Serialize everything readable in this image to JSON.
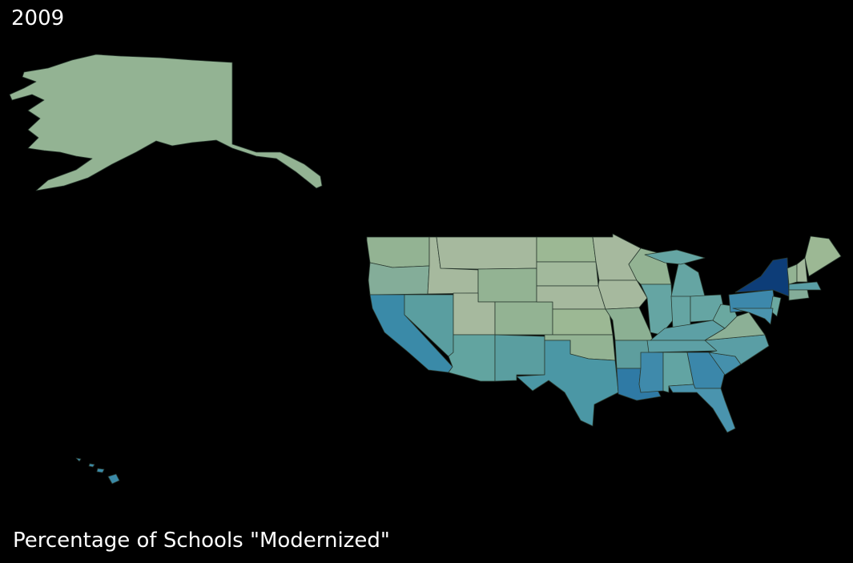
{
  "year": "2009",
  "title": "Percentage of Schools \"Modernized\"",
  "map": {
    "type": "choropleth",
    "background": "#000000",
    "states": [
      {
        "code": "AK",
        "color": "#93b393"
      },
      {
        "code": "HI",
        "color": "#3a8aa8"
      },
      {
        "code": "WA",
        "color": "#93b393"
      },
      {
        "code": "OR",
        "color": "#84ad99"
      },
      {
        "code": "CA",
        "color": "#3a8aa8"
      },
      {
        "code": "NV",
        "color": "#5a9ea0"
      },
      {
        "code": "ID",
        "color": "#a6b99e"
      },
      {
        "code": "MT",
        "color": "#a6b99e"
      },
      {
        "code": "WY",
        "color": "#93b393"
      },
      {
        "code": "UT",
        "color": "#a6b99e"
      },
      {
        "code": "CO",
        "color": "#93b393"
      },
      {
        "code": "AZ",
        "color": "#62a4a0"
      },
      {
        "code": "NM",
        "color": "#5a9ea0"
      },
      {
        "code": "ND",
        "color": "#9cb894"
      },
      {
        "code": "SD",
        "color": "#a2b99c"
      },
      {
        "code": "NE",
        "color": "#a6b99e"
      },
      {
        "code": "KS",
        "color": "#9cb894"
      },
      {
        "code": "OK",
        "color": "#93b393"
      },
      {
        "code": "TX",
        "color": "#4b97a5"
      },
      {
        "code": "MN",
        "color": "#a6b99e"
      },
      {
        "code": "IA",
        "color": "#a6b99e"
      },
      {
        "code": "MO",
        "color": "#8cb093"
      },
      {
        "code": "AR",
        "color": "#5e9e9e"
      },
      {
        "code": "LA",
        "color": "#2f7aa5"
      },
      {
        "code": "WI",
        "color": "#93b393"
      },
      {
        "code": "IL",
        "color": "#65a5a3"
      },
      {
        "code": "MI",
        "color": "#65a5a3"
      },
      {
        "code": "IN",
        "color": "#65a5a3"
      },
      {
        "code": "OH",
        "color": "#65a5a3"
      },
      {
        "code": "KY",
        "color": "#5da0a5"
      },
      {
        "code": "TN",
        "color": "#5da0a5"
      },
      {
        "code": "MS",
        "color": "#3f8aab"
      },
      {
        "code": "AL",
        "color": "#62a4a3"
      },
      {
        "code": "GA",
        "color": "#3b87aa"
      },
      {
        "code": "FL",
        "color": "#4a94ae"
      },
      {
        "code": "SC",
        "color": "#4590ac"
      },
      {
        "code": "NC",
        "color": "#5a9ea5"
      },
      {
        "code": "VA",
        "color": "#8cb096"
      },
      {
        "code": "WV",
        "color": "#6aa8a0"
      },
      {
        "code": "PA",
        "color": "#3d88ab"
      },
      {
        "code": "NY",
        "color": "#0d3d78"
      },
      {
        "code": "NJ",
        "color": "#6aa8a0"
      },
      {
        "code": "MD",
        "color": "#4a94ae"
      },
      {
        "code": "VT",
        "color": "#93b393"
      },
      {
        "code": "NH",
        "color": "#a2b99c"
      },
      {
        "code": "ME",
        "color": "#9cb894"
      },
      {
        "code": "MA",
        "color": "#5a9ea5"
      },
      {
        "code": "CT",
        "color": "#84ad99"
      }
    ]
  }
}
